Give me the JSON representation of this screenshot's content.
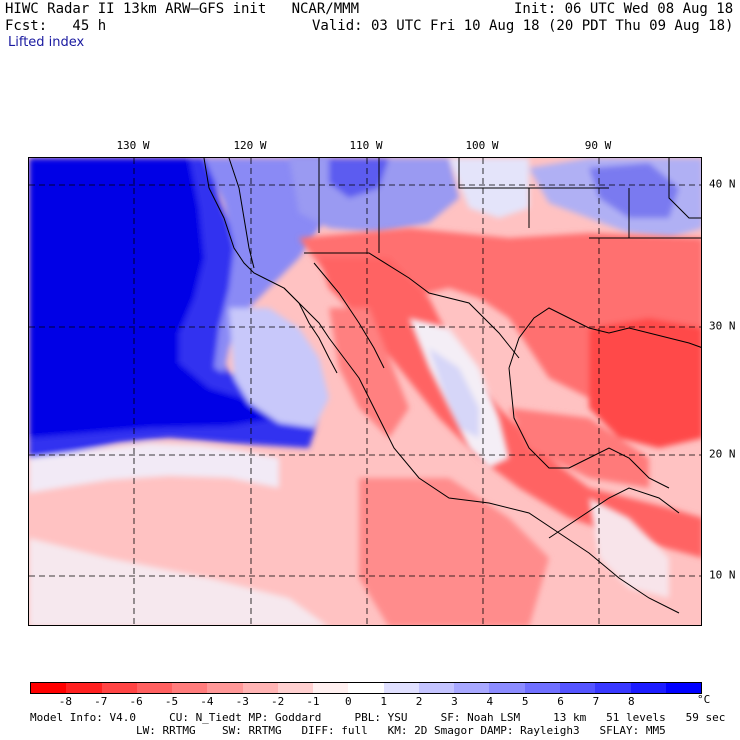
{
  "header": {
    "line1_left": "HIWC Radar II 13km ARW—GFS init   NCAR/MMM",
    "line1_right": "Init: 06 UTC Wed 08 Aug 18",
    "line2_left": "Fcst:   45 h",
    "line2_right": "Valid: 03 UTC Fri 10 Aug 18 (20 PDT Thu 09 Aug 18)",
    "field": "Lifted index"
  },
  "map": {
    "lon_labels": [
      "130 W",
      "120 W",
      "110 W",
      "100 W",
      "90 W"
    ],
    "lat_labels": [
      "40 N",
      "30 N",
      "20 N",
      "10 N"
    ]
  },
  "colorbar": {
    "colors": [
      "#ff0000",
      "#ff2020",
      "#ff4444",
      "#ff6060",
      "#ff7c7c",
      "#ff9898",
      "#ffb4b4",
      "#ffd0d0",
      "#fff0f0",
      "#ffffff",
      "#e0e0ff",
      "#c4c4ff",
      "#a8a8ff",
      "#8c8cff",
      "#7070ff",
      "#5454ff",
      "#3838ff",
      "#1c1cff",
      "#0000ff"
    ],
    "labels": [
      "-8",
      "-7",
      "-6",
      "-5",
      "-4",
      "-3",
      "-2",
      "-1",
      "0",
      "1",
      "2",
      "3",
      "4",
      "5",
      "6",
      "7",
      "8"
    ],
    "unit": "°C"
  },
  "info": {
    "line1": "Model Info: V4.0     CU: N_Tiedt MP: Goddard     PBL: YSU     SF: Noah LSM     13 km   51 levels   59 sec",
    "line2": "                LW: RRTMG    SW: RRTMG   DIFF: full   KM: 2D Smagor DAMP: Rayleigh3   SFLAY: MM5"
  }
}
